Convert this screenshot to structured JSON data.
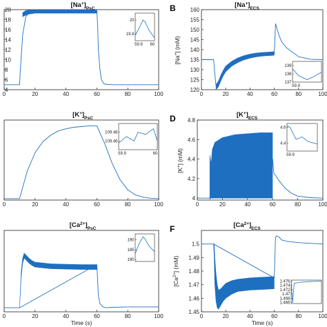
{
  "chart_data": [
    {
      "id": "A",
      "letter": "",
      "type": "line",
      "title_main": "[Na",
      "title_sup": "+",
      "title_tail": "]",
      "title_sub": "PsC",
      "ylabel": "",
      "xlabel": "",
      "xlim": [
        0,
        100
      ],
      "ylim": [
        4,
        20
      ],
      "xticks": [
        "0",
        "20",
        "40",
        "60",
        "80",
        "100"
      ],
      "yticks": [
        "4",
        "6",
        "8",
        "10",
        "12",
        "14",
        "16",
        "18",
        "20"
      ],
      "ytick_values": [
        4,
        6,
        8,
        10,
        12,
        14,
        16,
        18,
        20
      ],
      "series": [
        {
          "x": [
            0,
            10,
            10.5,
            12,
            14,
            16,
            18,
            20,
            30,
            40,
            50,
            59.9,
            60,
            60.5,
            61,
            62,
            63,
            64,
            65,
            70,
            80,
            90,
            100
          ],
          "y": [
            5,
            5,
            8,
            15,
            18.6,
            19.4,
            19.7,
            19.8,
            19.8,
            19.8,
            19.8,
            19.8,
            19.8,
            17,
            12,
            8,
            6,
            5.4,
            5.1,
            5,
            5,
            5,
            5
          ]
        }
      ],
      "band": {
        "x": [
          12,
          14,
          16,
          18,
          20,
          30,
          40,
          50,
          59.9
        ],
        "y_low": [
          18.6,
          18.9,
          19.1,
          19.2,
          19.3,
          19.3,
          19.3,
          19.3,
          19.3
        ],
        "y_high": [
          19.4,
          19.8,
          19.9,
          20.0,
          20.0,
          20.0,
          20.0,
          20.0,
          20.0
        ]
      },
      "inset": {
        "xlim": [
          59.9,
          60
        ],
        "ylim": [
          19.7,
          20.1
        ],
        "xticks": [
          "59.9",
          "60"
        ],
        "yticks": [
          "20",
          "19.8"
        ],
        "ytick_values": [
          20,
          19.8
        ],
        "x": [
          59.9,
          59.92,
          59.94,
          59.95,
          59.97,
          60
        ],
        "y": [
          19.78,
          19.88,
          20.0,
          19.98,
          19.86,
          19.74
        ]
      }
    },
    {
      "id": "B",
      "letter": "B",
      "type": "line",
      "title_main": "[Na",
      "title_sup": "+",
      "title_tail": "]",
      "title_sub": "ECS",
      "ylabel": "[Na",
      "ylabel_sup": "+",
      "ylabel_tail": "] (mM)",
      "xlabel": "",
      "xlim": [
        0,
        100
      ],
      "ylim": [
        120,
        160
      ],
      "xticks": [
        "0",
        "20",
        "40",
        "60",
        "80",
        "100"
      ],
      "yticks": [
        "120",
        "125",
        "130",
        "135",
        "140",
        "145",
        "150",
        "155",
        "160"
      ],
      "ytick_values": [
        120,
        125,
        130,
        135,
        140,
        145,
        150,
        155,
        160
      ],
      "series": [
        {
          "x": [
            0,
            10,
            11,
            12,
            13,
            14,
            16,
            18,
            20,
            25,
            30,
            35,
            40,
            45,
            50,
            55,
            59.9,
            60,
            61,
            62,
            64,
            66,
            70,
            80,
            90,
            100
          ],
          "y": [
            135,
            135,
            128,
            122,
            121,
            123,
            126,
            128.5,
            130.5,
            133,
            134.8,
            136,
            136.8,
            137.3,
            137.6,
            137.8,
            138,
            138,
            153,
            151,
            147,
            144,
            141,
            136.5,
            135.2,
            135
          ]
        }
      ],
      "band": {
        "x": [
          12,
          14,
          16,
          18,
          20,
          25,
          30,
          35,
          40,
          45,
          50,
          55,
          59.9
        ],
        "y_low": [
          120,
          121.5,
          124.5,
          127,
          129,
          131.8,
          133.6,
          134.9,
          135.8,
          136.4,
          136.8,
          137,
          137.2
        ],
        "y_high": [
          122.5,
          124.2,
          127.3,
          129.8,
          131.8,
          134.2,
          135.9,
          137,
          137.8,
          138.3,
          138.6,
          138.8,
          139
        ]
      },
      "inset": {
        "xlim": [
          59.9,
          60
        ],
        "ylim": [
          137,
          139.5
        ],
        "xticks": [
          "59.9"
        ],
        "yticks": [
          "139",
          "138",
          "137"
        ],
        "ytick_values": [
          139,
          138,
          137
        ],
        "x": [
          59.9,
          59.92,
          59.95,
          59.97,
          60
        ],
        "y": [
          138.6,
          137.8,
          137.3,
          137.6,
          138.2
        ]
      }
    },
    {
      "id": "C",
      "letter": "",
      "type": "line",
      "title_main": "[K",
      "title_sup": "+",
      "title_tail": "]",
      "title_sub": "PsC",
      "ylabel": "",
      "xlabel": "",
      "xlim": [
        0,
        100
      ],
      "ylim": [
        0,
        110
      ],
      "xticks": [
        "0",
        "20",
        "40",
        "60",
        "80",
        "100"
      ],
      "yticks": [],
      "ytick_values": [],
      "series": [
        {
          "x": [
            0,
            10,
            15,
            20,
            25,
            30,
            35,
            40,
            45,
            50,
            55,
            59.9,
            60,
            65,
            70,
            75,
            80,
            85,
            90,
            95,
            100
          ],
          "y": [
            2,
            2,
            40,
            65,
            80,
            89,
            95,
            98,
            100,
            101,
            102,
            102,
            102,
            78,
            50,
            28,
            14,
            7,
            4,
            2.5,
            2
          ]
        }
      ],
      "band": null,
      "inset": {
        "xlim": [
          59.9,
          60
        ],
        "ylim": [
          109.44,
          109.5
        ],
        "xticks": [
          "59.9",
          "60"
        ],
        "yticks": [
          "109.48",
          "109.46"
        ],
        "ytick_values": [
          109.48,
          109.46
        ],
        "x": [
          59.9,
          59.92,
          59.94,
          59.95,
          59.97,
          59.99,
          60
        ],
        "y": [
          109.455,
          109.47,
          109.46,
          109.48,
          109.475,
          109.488,
          109.46
        ]
      }
    },
    {
      "id": "D",
      "letter": "D",
      "type": "line",
      "title_main": "[K",
      "title_sup": "+",
      "title_tail": "]",
      "title_sub": "ECS",
      "ylabel": "[K",
      "ylabel_sup": "+",
      "ylabel_tail": "] (mM)",
      "xlabel": "",
      "xlim": [
        0,
        100
      ],
      "ylim": [
        3.98,
        4.8
      ],
      "xticks": [
        "0",
        "20",
        "40",
        "60",
        "80",
        "100"
      ],
      "yticks": [
        "4",
        "4.2",
        "4.4",
        "4.6",
        "4.8"
      ],
      "ytick_values": [
        4,
        4.2,
        4.4,
        4.6,
        4.8
      ],
      "series": [
        {
          "x": [
            0,
            10,
            59.9,
            60,
            61,
            62,
            65,
            70,
            75,
            80,
            90,
            100
          ],
          "y": [
            4.0,
            4.0,
            4.4,
            4.4,
            4.25,
            4.24,
            4.18,
            4.1,
            4.05,
            4.02,
            4.005,
            4.0
          ]
        }
      ],
      "band": {
        "x": [
          10,
          11,
          12,
          14,
          20,
          30,
          40,
          50,
          59.9
        ],
        "y_low": [
          3.99,
          4.0,
          4.0,
          4.0,
          4.0,
          4.0,
          4.0,
          4.0,
          4.0
        ],
        "y_high": [
          4.44,
          4.35,
          4.5,
          4.57,
          4.62,
          4.65,
          4.66,
          4.67,
          4.67
        ]
      },
      "inset": {
        "xlim": [
          59.9,
          60
        ],
        "ylim": [
          4.3,
          4.65
        ],
        "xticks": [
          "59.9"
        ],
        "yticks": [
          "4.6",
          "4.4"
        ],
        "ytick_values": [
          4.6,
          4.4
        ],
        "x": [
          59.9,
          59.91,
          59.93,
          59.95,
          59.97,
          60
        ],
        "y": [
          4.62,
          4.6,
          4.45,
          4.48,
          4.42,
          4.39
        ]
      }
    },
    {
      "id": "E",
      "letter": "",
      "type": "line",
      "title_main": "[Ca",
      "title_sup": "2+",
      "title_tail": "]",
      "title_sub": "PsC",
      "ylabel": "",
      "xlabel": "Time (s)",
      "xlim": [
        0,
        100
      ],
      "ylim": [
        0,
        100
      ],
      "xticks": [
        "0",
        "20",
        "40",
        "60",
        "80",
        "100"
      ],
      "yticks": [],
      "ytick_values": [],
      "series": [
        {
          "x": [
            0,
            10,
            60,
            61,
            62,
            64,
            66,
            70,
            80,
            90,
            100
          ],
          "y": [
            5,
            5,
            58,
            20,
            10,
            6,
            5,
            5.5,
            6,
            6,
            6
          ]
        }
      ],
      "band": {
        "x": [
          10,
          11,
          12,
          13,
          14,
          16,
          18,
          20,
          25,
          30,
          40,
          50,
          59.9
        ],
        "y_low": [
          5,
          42,
          60,
          66,
          64,
          60,
          57,
          55,
          54,
          53,
          52.5,
          52,
          52
        ],
        "y_high": [
          5,
          48,
          66,
          72,
          70,
          66,
          63,
          61,
          60,
          59,
          58.5,
          58,
          58
        ]
      },
      "inset": {
        "xlim": [
          59.9,
          60
        ],
        "ylim": [
          179,
          193
        ],
        "xticks": [],
        "yticks": [
          "190",
          "185",
          "180"
        ],
        "ytick_values": [
          190,
          185,
          180
        ],
        "x": [
          59.9,
          59.92,
          59.94,
          59.95,
          59.97,
          60
        ],
        "y": [
          183,
          188,
          191.5,
          190.5,
          187,
          184
        ]
      }
    },
    {
      "id": "F",
      "letter": "F",
      "type": "line",
      "title_main": "[Ca",
      "title_sup": "2+",
      "title_tail": "]",
      "title_sub": "ECS",
      "ylabel": "[Ca",
      "ylabel_sup": "2+",
      "ylabel_tail": "] (mM)",
      "xlabel": "Time (s)",
      "xlim": [
        0,
        100
      ],
      "ylim": [
        1.45,
        1.51
      ],
      "xticks": [
        "0",
        "20",
        "40",
        "60",
        "80",
        "100"
      ],
      "yticks": [
        "1.45",
        "1.46",
        "1.47",
        "1.48",
        "1.49",
        "1.5"
      ],
      "ytick_values": [
        1.45,
        1.46,
        1.47,
        1.48,
        1.49,
        1.5
      ],
      "series": [
        {
          "x": [
            0,
            10,
            59.9,
            60,
            61,
            62,
            64,
            66,
            70,
            80,
            90,
            100
          ],
          "y": [
            1.5,
            1.5,
            1.475,
            1.475,
            1.505,
            1.506,
            1.505,
            1.503,
            1.502,
            1.501,
            1.5005,
            1.5
          ]
        }
      ],
      "band": {
        "x": [
          10,
          10.5,
          11,
          12,
          13,
          14,
          16,
          18,
          20,
          25,
          30,
          40,
          50,
          59.9
        ],
        "y_low": [
          1.5,
          1.49,
          1.47,
          1.458,
          1.453,
          1.452,
          1.455,
          1.458,
          1.46,
          1.463,
          1.465,
          1.466,
          1.4665,
          1.467
        ],
        "y_high": [
          1.5,
          1.5,
          1.49,
          1.478,
          1.47,
          1.466,
          1.467,
          1.469,
          1.471,
          1.473,
          1.474,
          1.475,
          1.4755,
          1.476
        ]
      },
      "inset": {
        "xlim": [
          59.9,
          60
        ],
        "ylim": [
          1.4655,
          1.4765
        ],
        "xticks": [],
        "yticks": [
          "1.476",
          "1.474",
          "1.472",
          "1.47",
          "1.468",
          "1.466"
        ],
        "ytick_values": [
          1.476,
          1.474,
          1.472,
          1.47,
          1.468,
          1.466
        ],
        "x": [
          59.9,
          59.905,
          59.91,
          59.93,
          59.96,
          60
        ],
        "y": [
          1.476,
          1.466,
          1.475,
          1.4755,
          1.4758,
          1.476
        ]
      }
    }
  ],
  "colors": {
    "line": "#1f6fc0",
    "band": "#1f6fc0",
    "axis": "#222222",
    "background": "#ffffff"
  }
}
